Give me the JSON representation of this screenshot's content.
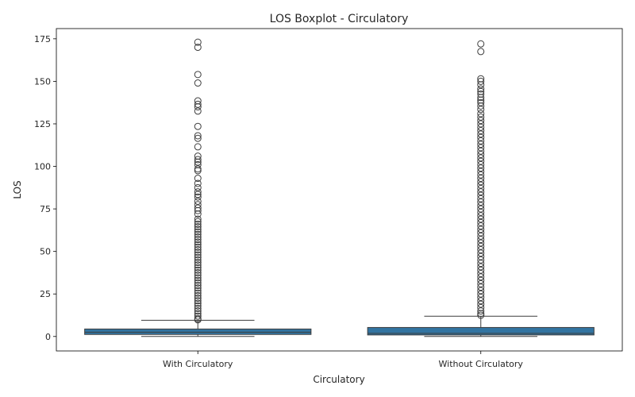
{
  "chart_data": {
    "type": "boxplot",
    "title": "LOS Boxplot - Circulatory",
    "xlabel": "Circulatory",
    "ylabel": "LOS",
    "ylim": [
      -8.5,
      181
    ],
    "yticks": [
      0,
      25,
      50,
      75,
      100,
      125,
      150,
      175
    ],
    "categories": [
      "With Circulatory",
      "Without Circulatory"
    ],
    "box_color": "#3274a1",
    "series": [
      {
        "name": "With Circulatory",
        "whisker_low": 0,
        "q1": 1.2,
        "median": 2.5,
        "q3": 4.4,
        "whisker_high": 9.5,
        "outliers": [
          173,
          170,
          154,
          149,
          138.5,
          136.5,
          135,
          132.5,
          123.5,
          118,
          116.5,
          111.5,
          106,
          104,
          102.5,
          101,
          98.5,
          97.5,
          93,
          90,
          87.5,
          85,
          83.5,
          82,
          79.5,
          77.5,
          75.5,
          74,
          72,
          69,
          67.5,
          66,
          64.5,
          63,
          61.5,
          60,
          58.5,
          57,
          55.5,
          54,
          52.5,
          51,
          49.5,
          48,
          46.5,
          45,
          43.5,
          42,
          40.5,
          39,
          37.5,
          36,
          34.5,
          33,
          31.5,
          30,
          28.5,
          27,
          25.5,
          24,
          22.5,
          21,
          19.5,
          18,
          16.5,
          15,
          13.5,
          12,
          10.5,
          9.8
        ]
      },
      {
        "name": "Without Circulatory",
        "whisker_low": 0,
        "q1": 0.9,
        "median": 1.8,
        "q3": 5.3,
        "whisker_high": 11.9,
        "outliers": [
          172,
          167.5,
          151.5,
          150,
          148,
          145.5,
          144,
          142.5,
          140.5,
          139,
          137.5,
          135.5,
          133.5,
          131,
          129,
          127,
          125,
          123,
          121,
          119,
          117,
          115,
          113,
          111,
          109,
          107,
          105,
          103,
          101,
          99,
          97,
          95,
          93,
          91,
          89,
          87,
          85,
          83,
          81,
          79,
          77,
          75,
          73,
          71,
          69,
          67,
          65,
          63,
          61,
          59,
          57,
          55,
          53,
          51,
          49,
          47,
          45,
          43,
          41,
          39,
          37,
          35,
          33,
          31,
          29,
          27,
          25,
          23,
          21,
          19,
          17,
          15,
          13.5,
          12.5
        ]
      }
    ]
  }
}
